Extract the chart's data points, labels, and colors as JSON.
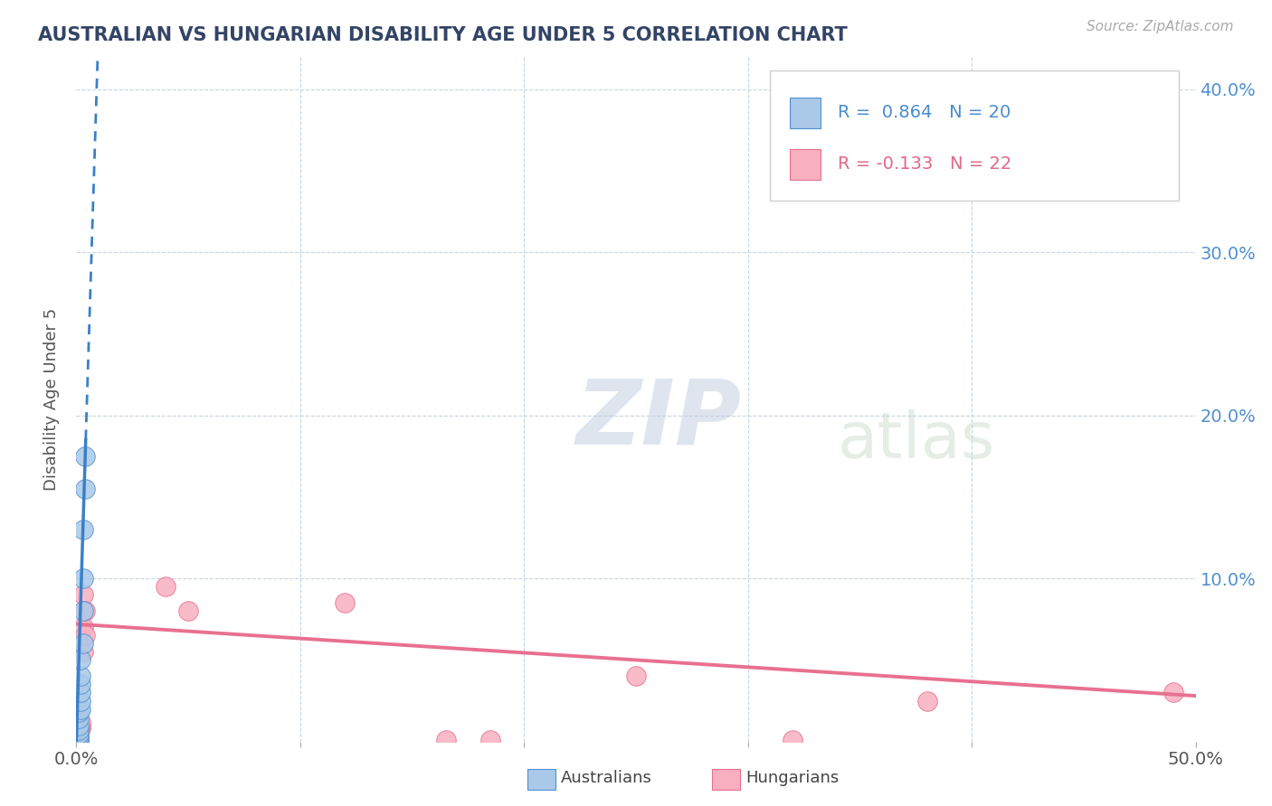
{
  "title": "AUSTRALIAN VS HUNGARIAN DISABILITY AGE UNDER 5 CORRELATION CHART",
  "source": "Source: ZipAtlas.com",
  "ylabel": "Disability Age Under 5",
  "r_australian": 0.864,
  "n_australian": 20,
  "r_hungarian": -0.133,
  "n_hungarian": 22,
  "aus_color_face": "#aac8e8",
  "aus_color_edge": "#5090d0",
  "hun_color_face": "#f8b0c0",
  "hun_color_edge": "#e87090",
  "aus_line_color": "#3a80c8",
  "hun_line_color": "#e87090",
  "bg_color": "#ffffff",
  "grid_color": "#c8d4e0",
  "watermark_zip": "ZIP",
  "watermark_atlas": "atlas",
  "watermark_color_zip": "#c0cce0",
  "watermark_color_atlas": "#c8d8c8",
  "xlim": [
    0.0,
    0.5
  ],
  "ylim": [
    0.0,
    0.42
  ],
  "aus_x": [
    0.001,
    0.001,
    0.001,
    0.001,
    0.001,
    0.001,
    0.001,
    0.001,
    0.002,
    0.002,
    0.002,
    0.002,
    0.002,
    0.002,
    0.003,
    0.003,
    0.003,
    0.003,
    0.004,
    0.004
  ],
  "aus_y": [
    0.001,
    0.002,
    0.003,
    0.005,
    0.007,
    0.01,
    0.014,
    0.018,
    0.02,
    0.025,
    0.03,
    0.035,
    0.04,
    0.05,
    0.06,
    0.08,
    0.1,
    0.13,
    0.155,
    0.175
  ],
  "hun_x": [
    0.001,
    0.001,
    0.001,
    0.001,
    0.001,
    0.002,
    0.002,
    0.002,
    0.003,
    0.003,
    0.003,
    0.004,
    0.004,
    0.04,
    0.05,
    0.12,
    0.165,
    0.185,
    0.25,
    0.32,
    0.38,
    0.49
  ],
  "hun_y": [
    0.001,
    0.002,
    0.003,
    0.005,
    0.007,
    0.008,
    0.01,
    0.012,
    0.055,
    0.07,
    0.09,
    0.08,
    0.065,
    0.095,
    0.08,
    0.085,
    0.001,
    0.001,
    0.04,
    0.001,
    0.025,
    0.03
  ],
  "aus_line_x_start": 0.0,
  "aus_line_x_end": 0.005,
  "aus_line_y_start": 0.0,
  "aus_line_y_end": 0.42,
  "aus_line_dashed_x_start": 0.001,
  "aus_line_dashed_x_end": 0.0045,
  "hun_line_x_start": 0.0,
  "hun_line_x_end": 0.5,
  "hun_line_y_start": 0.072,
  "hun_line_y_end": 0.028
}
